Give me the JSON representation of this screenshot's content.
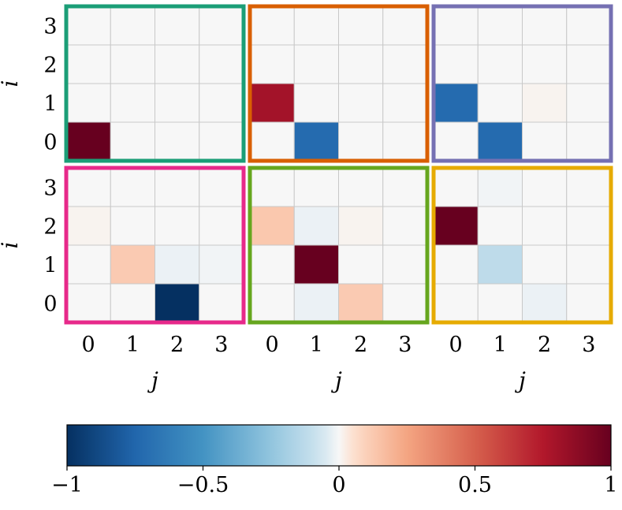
{
  "chart_data": {
    "type": "heatmap",
    "grid_size": 4,
    "colormap": "RdBu_r",
    "vmin": -1,
    "vmax": 1,
    "xlabel": "j",
    "ylabel": "i",
    "x_ticks": [
      "0",
      "1",
      "2",
      "3"
    ],
    "y_ticks": [
      "0",
      "1",
      "2",
      "3"
    ],
    "colorbar": {
      "ticks": [
        -1,
        -0.5,
        0,
        0.5,
        1
      ],
      "tick_labels": [
        "−1",
        "−0.5",
        "0",
        "0.5",
        "1"
      ]
    },
    "panels": [
      {
        "border_color": "#1b9e77",
        "values": [
          [
            1.0,
            0,
            0,
            0
          ],
          [
            0,
            0,
            0,
            0
          ],
          [
            0,
            0,
            0,
            0
          ],
          [
            0,
            0,
            0,
            0
          ]
        ]
      },
      {
        "border_color": "#d95f02",
        "values": [
          [
            0,
            -0.72,
            0,
            0
          ],
          [
            0.8,
            0,
            0,
            0
          ],
          [
            0,
            0,
            0,
            0
          ],
          [
            0,
            0,
            0,
            0
          ]
        ]
      },
      {
        "border_color": "#7570b3",
        "values": [
          [
            0,
            -0.72,
            0,
            0
          ],
          [
            -0.72,
            0,
            0.01,
            0
          ],
          [
            0,
            0,
            0,
            0
          ],
          [
            0,
            0,
            0,
            0
          ]
        ]
      },
      {
        "border_color": "#e7298a",
        "values": [
          [
            0,
            0,
            -1.0,
            0
          ],
          [
            0,
            0.12,
            -0.02,
            -0.01
          ],
          [
            0.01,
            0,
            0,
            0
          ],
          [
            0,
            0,
            0,
            0
          ]
        ]
      },
      {
        "border_color": "#66a61e",
        "values": [
          [
            0,
            -0.02,
            0.12,
            0
          ],
          [
            0,
            1.0,
            0,
            0
          ],
          [
            0.13,
            -0.02,
            0.01,
            0
          ],
          [
            0,
            0,
            0,
            0
          ]
        ]
      },
      {
        "border_color": "#e6ab02",
        "values": [
          [
            0,
            0,
            -0.02,
            0
          ],
          [
            0,
            -0.12,
            0,
            0
          ],
          [
            1.0,
            0,
            0,
            0
          ],
          [
            0,
            -0.01,
            0,
            0
          ]
        ]
      }
    ]
  }
}
